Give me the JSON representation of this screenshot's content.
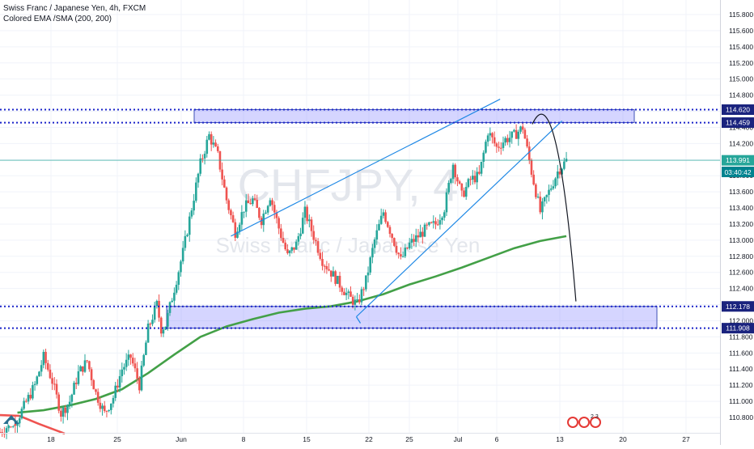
{
  "legend": {
    "symbol": "Swiss Franc / Japanese Yen, 4h, FXCM",
    "indicator": "Colored EMA /SMA (200, 200)"
  },
  "watermark": {
    "ticker": "CHFJPY, 4",
    "name": "Swiss Franc / Japanese Yen"
  },
  "countdown": "03:40:42",
  "logo_badge": "2 3",
  "chart_data": {
    "type": "candlestick",
    "title": "Swiss Franc / Japanese Yen, 4h, FXCM",
    "x_ticks": [
      "18",
      "25",
      "Jun",
      "8",
      "15",
      "22",
      "25",
      "Jul",
      "6",
      "13",
      "20",
      "27"
    ],
    "y_ticks": [
      115.8,
      115.6,
      115.4,
      115.2,
      115.0,
      114.8,
      114.6,
      114.4,
      114.2,
      114.0,
      113.8,
      113.6,
      113.4,
      113.2,
      113.0,
      112.8,
      112.6,
      112.4,
      112.2,
      112.0,
      111.8,
      111.6,
      111.4,
      111.2,
      111.0,
      110.8
    ],
    "ylim": [
      110.75,
      115.95
    ],
    "current_price": 113.991,
    "levels": [
      114.62,
      114.459,
      112.178,
      111.908
    ],
    "resistance_zone": [
      114.459,
      114.62
    ],
    "support_zone": [
      111.908,
      112.178
    ],
    "price_path": [
      [
        0,
        110.62
      ],
      [
        2,
        110.78
      ],
      [
        4,
        111.2
      ],
      [
        5,
        111.55
      ],
      [
        6,
        111.25
      ],
      [
        7,
        110.85
      ],
      [
        8,
        111.0
      ],
      [
        9,
        111.35
      ],
      [
        10,
        111.5
      ],
      [
        11,
        111.1
      ],
      [
        12,
        110.85
      ],
      [
        13,
        111.05
      ],
      [
        14,
        111.4
      ],
      [
        15,
        111.55
      ],
      [
        16,
        111.2
      ],
      [
        17,
        111.9
      ],
      [
        18,
        112.2
      ],
      [
        18.5,
        111.9
      ],
      [
        19,
        111.95
      ],
      [
        20,
        112.4
      ],
      [
        21,
        112.85
      ],
      [
        22,
        113.4
      ],
      [
        23,
        113.95
      ],
      [
        24,
        114.3
      ],
      [
        25,
        114.05
      ],
      [
        26,
        113.5
      ],
      [
        27,
        113.1
      ],
      [
        28,
        113.4
      ],
      [
        29,
        113.5
      ],
      [
        30,
        113.25
      ],
      [
        31,
        113.55
      ],
      [
        32,
        113.15
      ],
      [
        33,
        112.8
      ],
      [
        34,
        112.95
      ],
      [
        35,
        113.35
      ],
      [
        36,
        113.05
      ],
      [
        37,
        112.75
      ],
      [
        38,
        112.6
      ],
      [
        39,
        112.45
      ],
      [
        40,
        112.3
      ],
      [
        41,
        112.2
      ],
      [
        42,
        112.5
      ],
      [
        43,
        113.0
      ],
      [
        44,
        113.35
      ],
      [
        45,
        113.05
      ],
      [
        46,
        112.75
      ],
      [
        47,
        112.95
      ],
      [
        48,
        113.05
      ],
      [
        49,
        113.15
      ],
      [
        50,
        113.2
      ],
      [
        51,
        113.4
      ],
      [
        52,
        113.95
      ],
      [
        53,
        113.55
      ],
      [
        54,
        113.75
      ],
      [
        55,
        113.8
      ],
      [
        56,
        114.35
      ],
      [
        57,
        114.15
      ],
      [
        58,
        114.25
      ],
      [
        59,
        114.3
      ],
      [
        60,
        114.4
      ],
      [
        61,
        113.85
      ],
      [
        62,
        113.35
      ],
      [
        63,
        113.6
      ],
      [
        64,
        113.85
      ],
      [
        65,
        113.99
      ]
    ],
    "moving_average": [
      [
        2,
        110.86
      ],
      [
        5,
        110.89
      ],
      [
        8,
        110.95
      ],
      [
        11,
        111.03
      ],
      [
        14,
        111.15
      ],
      [
        17,
        111.35
      ],
      [
        20,
        111.58
      ],
      [
        23,
        111.8
      ],
      [
        26,
        111.93
      ],
      [
        29,
        112.02
      ],
      [
        32,
        112.1
      ],
      [
        35,
        112.15
      ],
      [
        38,
        112.18
      ],
      [
        41,
        112.24
      ],
      [
        44,
        112.33
      ],
      [
        47,
        112.45
      ],
      [
        50,
        112.55
      ],
      [
        53,
        112.66
      ],
      [
        56,
        112.78
      ],
      [
        59,
        112.9
      ],
      [
        62,
        112.99
      ],
      [
        65,
        113.05
      ]
    ],
    "channel_upper": [
      [
        26.5,
        113.05
      ],
      [
        57.4,
        114.75
      ]
    ],
    "channel_lower": [
      [
        40.9,
        112.05
      ],
      [
        64.5,
        114.48
      ]
    ],
    "projection": [
      [
        61.1,
        114.44
      ],
      [
        63.9,
        114.43
      ],
      [
        66.1,
        112.24
      ]
    ]
  }
}
